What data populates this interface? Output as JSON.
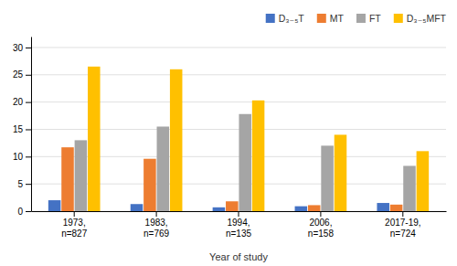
{
  "chart_data": {
    "type": "bar",
    "categories": [
      "1973,\nn=827",
      "1983,\nn=769",
      "1994,\nn=135",
      "2006,\nn=158",
      "2017-19,\nn=724"
    ],
    "series": [
      {
        "name": "D₃₋₅T",
        "color": "#4472C4",
        "values": [
          2.0,
          1.3,
          0.7,
          0.9,
          1.5
        ]
      },
      {
        "name": "MT",
        "color": "#ED7D31",
        "values": [
          11.7,
          9.6,
          1.8,
          1.1,
          1.2
        ]
      },
      {
        "name": "FT",
        "color": "#A5A5A5",
        "values": [
          13.0,
          15.5,
          17.8,
          12.0,
          8.3
        ]
      },
      {
        "name": "D₃₋₅MFT",
        "color": "#FFC000",
        "values": [
          26.5,
          26.0,
          20.3,
          14.0,
          11.0
        ]
      }
    ],
    "xlabel": "Year of study",
    "ylim": [
      0,
      32
    ],
    "yticks": [
      0,
      5,
      10,
      15,
      20,
      25,
      30
    ],
    "grid": true,
    "legend": "upper right"
  }
}
